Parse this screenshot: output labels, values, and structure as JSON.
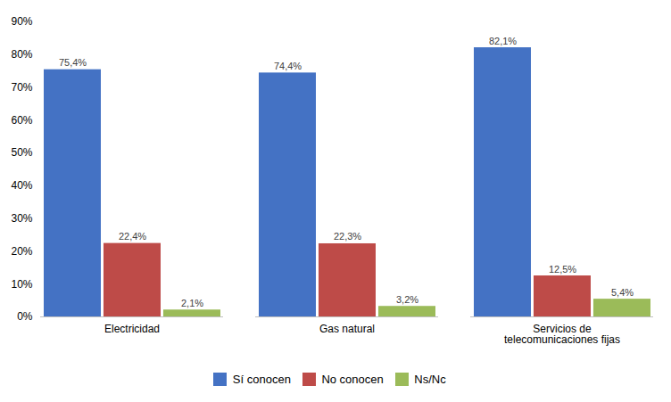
{
  "chart_data": {
    "type": "bar",
    "categories": [
      "Electricidad",
      "Gas natural",
      "Servicios de\ntelecomunicaciones fijas"
    ],
    "series": [
      {
        "name": "Sí conocen",
        "color": "#4472C4",
        "values": [
          75.4,
          74.4,
          82.1
        ],
        "value_labels": [
          "75,4%",
          "74,4%",
          "82,1%"
        ]
      },
      {
        "name": "No conocen",
        "color": "#BE4B48",
        "values": [
          22.4,
          22.3,
          12.5
        ],
        "value_labels": [
          "22,4%",
          "22,3%",
          "12,5%"
        ]
      },
      {
        "name": "Ns/Nc",
        "color": "#9BBB59",
        "values": [
          2.1,
          3.2,
          5.4
        ],
        "value_labels": [
          "2,1%",
          "3,2%",
          "5,4%"
        ]
      }
    ],
    "ylim": [
      0,
      90
    ],
    "yticks": [
      {
        "value": 0,
        "label": "0%"
      },
      {
        "value": 10,
        "label": "10%"
      },
      {
        "value": 20,
        "label": "20%"
      },
      {
        "value": 30,
        "label": "30%"
      },
      {
        "value": 40,
        "label": "40%"
      },
      {
        "value": 50,
        "label": "50%"
      },
      {
        "value": 60,
        "label": "60%"
      },
      {
        "value": 70,
        "label": "70%"
      },
      {
        "value": 80,
        "label": "80%"
      },
      {
        "value": 90,
        "label": "90%"
      }
    ],
    "grid": false,
    "data_labels": true,
    "legend": "bottom"
  }
}
